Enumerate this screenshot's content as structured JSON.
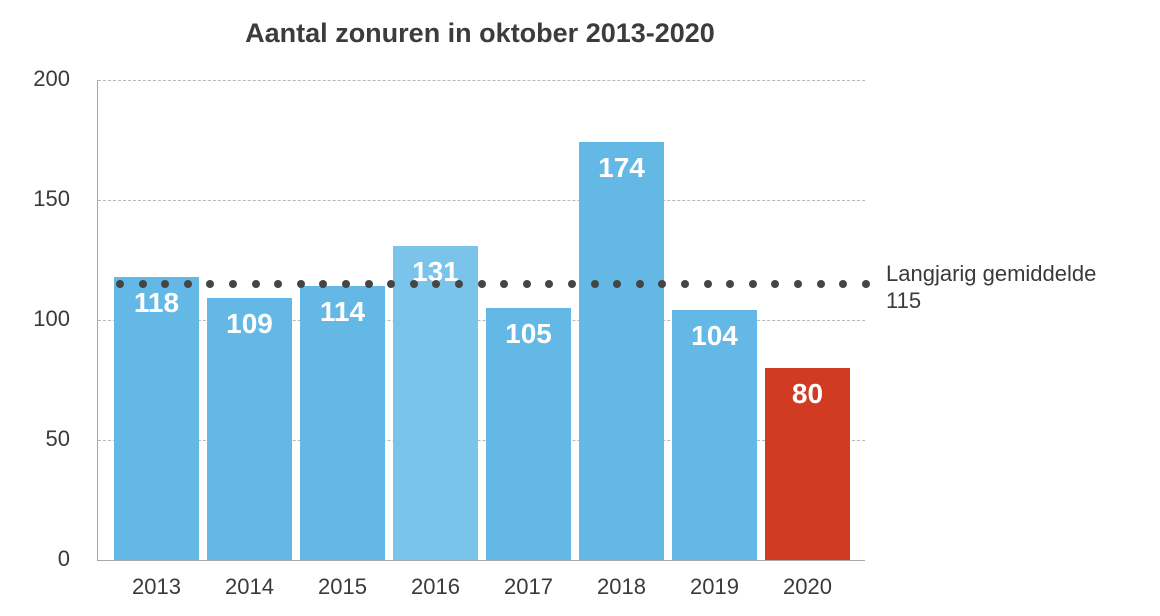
{
  "chart_data": {
    "type": "bar",
    "title": "Aantal zonuren in oktober 2013-2020",
    "xlabel": "",
    "ylabel": "",
    "categories": [
      "2013",
      "2014",
      "2015",
      "2016",
      "2017",
      "2018",
      "2019",
      "2020"
    ],
    "values": [
      118,
      109,
      114,
      131,
      105,
      174,
      104,
      80
    ],
    "bar_colors": [
      "#63b8e5",
      "#63b8e5",
      "#63b8e5",
      "#7ac3ea",
      "#63b8e5",
      "#63b8e5",
      "#63b8e5",
      "#d13b22"
    ],
    "ylim": [
      0,
      200
    ],
    "yticks": [
      "0",
      "50",
      "100",
      "150",
      "200"
    ],
    "grid": true,
    "reference_line": {
      "label": "Langjarig gemiddelde",
      "value": 115,
      "value_label": "115",
      "style": "dotted",
      "color": "#454545"
    }
  }
}
